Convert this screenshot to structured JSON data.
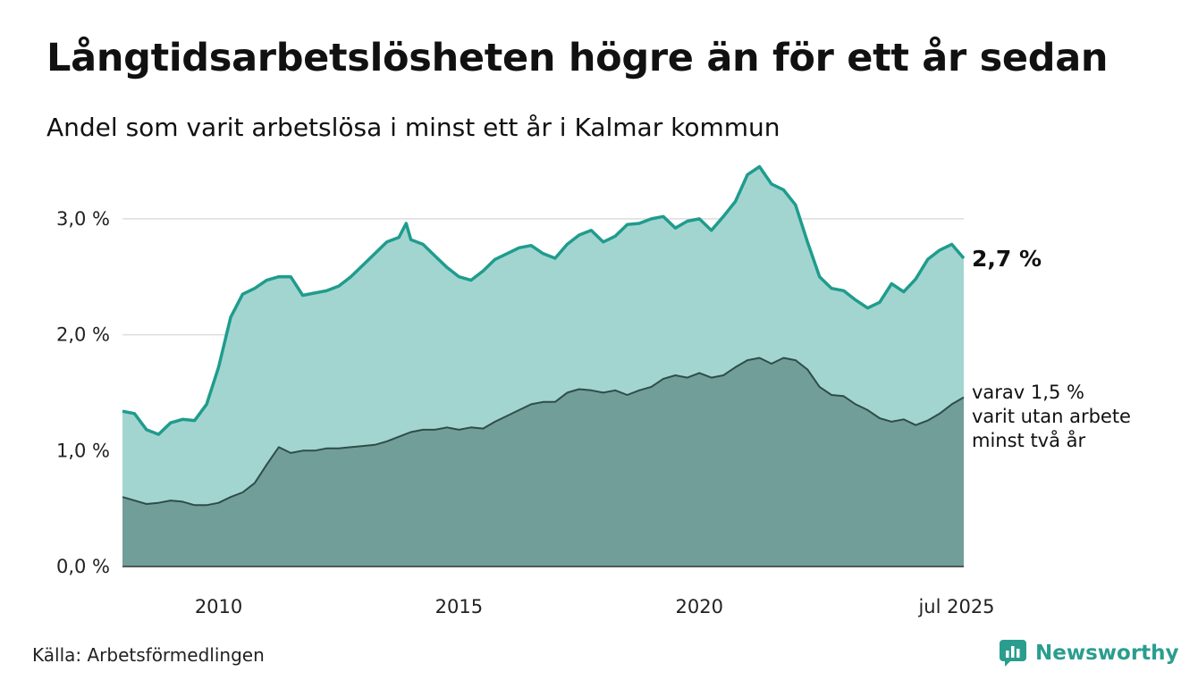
{
  "header": {
    "title": "Långtidsarbetslösheten högre än för ett år sedan",
    "subtitle": "Andel som varit arbetslösa i minst ett år i Kalmar kommun"
  },
  "footer": {
    "source": "Källa: Arbetsförmedlingen",
    "brand": "Newsworthy",
    "brand_color": "#2a9d8f"
  },
  "chart_data": {
    "type": "area",
    "x_start": "2008-01",
    "x_end": "2025-07",
    "x_ticks": [
      {
        "value": 2010,
        "label": "2010"
      },
      {
        "value": 2015,
        "label": "2015"
      },
      {
        "value": 2020,
        "label": "2020"
      },
      {
        "value": 2025.5,
        "label": "jul 2025"
      }
    ],
    "y_ticks": [
      {
        "value": 0,
        "label": "0,0 %"
      },
      {
        "value": 1,
        "label": "1,0 %"
      },
      {
        "value": 2,
        "label": "2,0 %"
      },
      {
        "value": 3,
        "label": "3,0 %"
      }
    ],
    "ylim": [
      0,
      3.5
    ],
    "grid": true,
    "colors": {
      "series1_fill": "#a3d5d0",
      "series1_line": "#1f9c8d",
      "series2_fill": "#719e98",
      "series2_line": "#2f4d48",
      "grid": "#dddddd"
    },
    "end_labels": {
      "series1": "2,7 %",
      "series2_lines": [
        "varav 1,5 %",
        "varit utan arbete",
        "minst två år"
      ]
    },
    "series": [
      {
        "key": "series1",
        "points": [
          [
            2008.0,
            1.34
          ],
          [
            2008.25,
            1.32
          ],
          [
            2008.5,
            1.18
          ],
          [
            2008.75,
            1.14
          ],
          [
            2009.0,
            1.24
          ],
          [
            2009.25,
            1.27
          ],
          [
            2009.5,
            1.26
          ],
          [
            2009.75,
            1.4
          ],
          [
            2010.0,
            1.72
          ],
          [
            2010.25,
            2.15
          ],
          [
            2010.5,
            2.35
          ],
          [
            2010.75,
            2.4
          ],
          [
            2011.0,
            2.47
          ],
          [
            2011.25,
            2.5
          ],
          [
            2011.5,
            2.5
          ],
          [
            2011.75,
            2.34
          ],
          [
            2012.0,
            2.36
          ],
          [
            2012.25,
            2.38
          ],
          [
            2012.5,
            2.42
          ],
          [
            2012.75,
            2.5
          ],
          [
            2013.0,
            2.6
          ],
          [
            2013.25,
            2.7
          ],
          [
            2013.5,
            2.8
          ],
          [
            2013.75,
            2.84
          ],
          [
            2013.9,
            2.96
          ],
          [
            2014.0,
            2.82
          ],
          [
            2014.25,
            2.78
          ],
          [
            2014.5,
            2.68
          ],
          [
            2014.75,
            2.58
          ],
          [
            2015.0,
            2.5
          ],
          [
            2015.25,
            2.47
          ],
          [
            2015.5,
            2.55
          ],
          [
            2015.75,
            2.65
          ],
          [
            2016.0,
            2.7
          ],
          [
            2016.25,
            2.75
          ],
          [
            2016.5,
            2.77
          ],
          [
            2016.75,
            2.7
          ],
          [
            2017.0,
            2.66
          ],
          [
            2017.25,
            2.78
          ],
          [
            2017.5,
            2.86
          ],
          [
            2017.75,
            2.9
          ],
          [
            2018.0,
            2.8
          ],
          [
            2018.25,
            2.85
          ],
          [
            2018.5,
            2.95
          ],
          [
            2018.75,
            2.96
          ],
          [
            2019.0,
            3.0
          ],
          [
            2019.25,
            3.02
          ],
          [
            2019.5,
            2.92
          ],
          [
            2019.75,
            2.98
          ],
          [
            2020.0,
            3.0
          ],
          [
            2020.25,
            2.9
          ],
          [
            2020.5,
            3.02
          ],
          [
            2020.75,
            3.15
          ],
          [
            2021.0,
            3.38
          ],
          [
            2021.25,
            3.45
          ],
          [
            2021.5,
            3.3
          ],
          [
            2021.75,
            3.25
          ],
          [
            2022.0,
            3.12
          ],
          [
            2022.25,
            2.8
          ],
          [
            2022.5,
            2.5
          ],
          [
            2022.75,
            2.4
          ],
          [
            2023.0,
            2.38
          ],
          [
            2023.25,
            2.3
          ],
          [
            2023.5,
            2.23
          ],
          [
            2023.75,
            2.28
          ],
          [
            2024.0,
            2.44
          ],
          [
            2024.25,
            2.37
          ],
          [
            2024.5,
            2.48
          ],
          [
            2024.75,
            2.65
          ],
          [
            2025.0,
            2.73
          ],
          [
            2025.25,
            2.78
          ],
          [
            2025.5,
            2.66
          ]
        ]
      },
      {
        "key": "series2",
        "points": [
          [
            2008.0,
            0.6
          ],
          [
            2008.25,
            0.57
          ],
          [
            2008.5,
            0.54
          ],
          [
            2008.75,
            0.55
          ],
          [
            2009.0,
            0.57
          ],
          [
            2009.25,
            0.56
          ],
          [
            2009.5,
            0.53
          ],
          [
            2009.75,
            0.53
          ],
          [
            2010.0,
            0.55
          ],
          [
            2010.25,
            0.6
          ],
          [
            2010.5,
            0.64
          ],
          [
            2010.75,
            0.72
          ],
          [
            2011.0,
            0.88
          ],
          [
            2011.25,
            1.03
          ],
          [
            2011.5,
            0.98
          ],
          [
            2011.75,
            1.0
          ],
          [
            2012.0,
            1.0
          ],
          [
            2012.25,
            1.02
          ],
          [
            2012.5,
            1.02
          ],
          [
            2012.75,
            1.03
          ],
          [
            2013.0,
            1.04
          ],
          [
            2013.25,
            1.05
          ],
          [
            2013.5,
            1.08
          ],
          [
            2013.75,
            1.12
          ],
          [
            2014.0,
            1.16
          ],
          [
            2014.25,
            1.18
          ],
          [
            2014.5,
            1.18
          ],
          [
            2014.75,
            1.2
          ],
          [
            2015.0,
            1.18
          ],
          [
            2015.25,
            1.2
          ],
          [
            2015.5,
            1.19
          ],
          [
            2015.75,
            1.25
          ],
          [
            2016.0,
            1.3
          ],
          [
            2016.25,
            1.35
          ],
          [
            2016.5,
            1.4
          ],
          [
            2016.75,
            1.42
          ],
          [
            2017.0,
            1.42
          ],
          [
            2017.25,
            1.5
          ],
          [
            2017.5,
            1.53
          ],
          [
            2017.75,
            1.52
          ],
          [
            2018.0,
            1.5
          ],
          [
            2018.25,
            1.52
          ],
          [
            2018.5,
            1.48
          ],
          [
            2018.75,
            1.52
          ],
          [
            2019.0,
            1.55
          ],
          [
            2019.25,
            1.62
          ],
          [
            2019.5,
            1.65
          ],
          [
            2019.75,
            1.63
          ],
          [
            2020.0,
            1.67
          ],
          [
            2020.25,
            1.63
          ],
          [
            2020.5,
            1.65
          ],
          [
            2020.75,
            1.72
          ],
          [
            2021.0,
            1.78
          ],
          [
            2021.25,
            1.8
          ],
          [
            2021.5,
            1.75
          ],
          [
            2021.75,
            1.8
          ],
          [
            2022.0,
            1.78
          ],
          [
            2022.25,
            1.7
          ],
          [
            2022.5,
            1.55
          ],
          [
            2022.75,
            1.48
          ],
          [
            2023.0,
            1.47
          ],
          [
            2023.25,
            1.4
          ],
          [
            2023.5,
            1.35
          ],
          [
            2023.75,
            1.28
          ],
          [
            2024.0,
            1.25
          ],
          [
            2024.25,
            1.27
          ],
          [
            2024.5,
            1.22
          ],
          [
            2024.75,
            1.26
          ],
          [
            2025.0,
            1.32
          ],
          [
            2025.25,
            1.4
          ],
          [
            2025.5,
            1.46
          ]
        ]
      }
    ]
  }
}
